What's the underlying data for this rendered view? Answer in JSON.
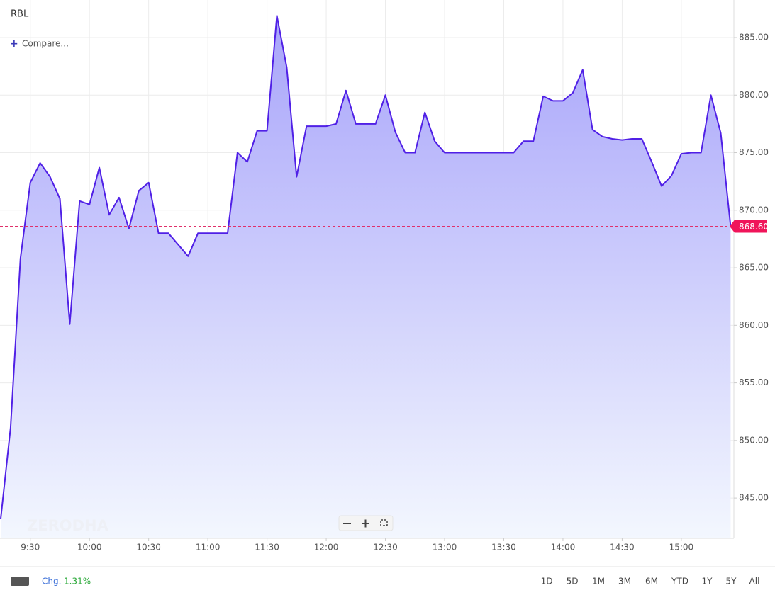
{
  "chart_data": {
    "type": "area",
    "symbol": "RBL",
    "compare": "Compare...",
    "watermark": "ZERODHA",
    "x": [
      "9:15",
      "9:20",
      "9:25",
      "9:30",
      "9:35",
      "9:40",
      "9:45",
      "9:50",
      "9:55",
      "10:00",
      "10:05",
      "10:10",
      "10:15",
      "10:20",
      "10:25",
      "10:30",
      "10:35",
      "10:40",
      "10:45",
      "10:50",
      "10:55",
      "11:00",
      "11:05",
      "11:10",
      "11:15",
      "11:20",
      "11:25",
      "11:30",
      "11:35",
      "11:40",
      "11:45",
      "11:50",
      "11:55",
      "12:00",
      "12:05",
      "12:10",
      "12:15",
      "12:20",
      "12:25",
      "12:30",
      "12:35",
      "12:40",
      "12:45",
      "12:50",
      "12:55",
      "13:00",
      "13:05",
      "13:10",
      "13:15",
      "13:20",
      "13:25",
      "13:30",
      "13:35",
      "13:40",
      "13:45",
      "13:50",
      "13:55",
      "14:00",
      "14:05",
      "14:10",
      "14:15",
      "14:20",
      "14:25",
      "14:30",
      "14:35",
      "14:40",
      "14:45",
      "14:50",
      "14:55",
      "15:00",
      "15:05",
      "15:10",
      "15:15",
      "15:20",
      "15:25"
    ],
    "series": [
      {
        "name": "RBL",
        "color": "#5020e6",
        "values": [
          843.2,
          851.1,
          865.8,
          872.4,
          874.1,
          872.9,
          871.0,
          860.1,
          870.8,
          870.5,
          873.7,
          869.6,
          871.1,
          868.4,
          871.7,
          872.4,
          868.0,
          868.0,
          867.0,
          866.0,
          868.0,
          868.0,
          868.0,
          868.0,
          875.0,
          874.2,
          876.9,
          876.9,
          886.9,
          882.4,
          872.9,
          877.3,
          877.3,
          877.3,
          877.5,
          880.4,
          877.5,
          877.5,
          877.5,
          880.0,
          876.8,
          875.0,
          875.0,
          878.5,
          876.0,
          875.0,
          875.0,
          875.0,
          875.0,
          875.0,
          875.0,
          875.0,
          875.0,
          876.0,
          876.0,
          879.9,
          879.5,
          879.5,
          880.2,
          882.2,
          877.0,
          876.4,
          876.2,
          876.1,
          876.2,
          876.2,
          874.2,
          872.1,
          873.0,
          874.9,
          875.0,
          875.0,
          880.0,
          876.7,
          868.6
        ]
      }
    ],
    "price_line": {
      "value": 868.6,
      "label": "868.60"
    },
    "xlim": [
      "9:15",
      "15:27"
    ],
    "xticks": [
      "9:30",
      "10:00",
      "10:30",
      "11:00",
      "11:30",
      "12:00",
      "12:30",
      "13:00",
      "13:30",
      "14:00",
      "14:30",
      "15:00"
    ],
    "ylim": [
      841.5,
      888.26
    ],
    "yticks": [
      {
        "value": 845,
        "label": "845.00"
      },
      {
        "value": 850,
        "label": "850.00"
      },
      {
        "value": 855,
        "label": "855.00"
      },
      {
        "value": 860,
        "label": "860.00"
      },
      {
        "value": 865,
        "label": "865.00"
      },
      {
        "value": 870,
        "label": "870.00"
      },
      {
        "value": 875,
        "label": "875.00"
      },
      {
        "value": 880,
        "label": "880.00"
      },
      {
        "value": 885,
        "label": "885.00"
      }
    ],
    "grid": true,
    "change_label": "Chg.",
    "change": "1.31%",
    "ranges": [
      "1D",
      "5D",
      "1M",
      "3M",
      "6M",
      "YTD",
      "1Y",
      "5Y",
      "All"
    ]
  }
}
